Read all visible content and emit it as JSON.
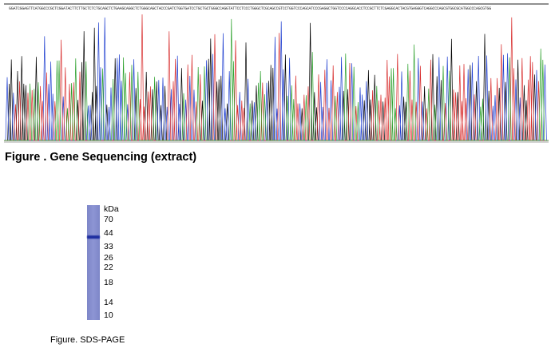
{
  "sequencing": {
    "sequence": "GGATCGGAGTTCATGGCCCGCTCGGATACTTCTTGCTCTCTGCAGCTCTGAAGCAGGCTCTGGGCAGCTACCCGATCTGGTGATCCTGCTGCTGGGCCAGGTATTCCTCCCTGGGCTCGCAGCCGTCCTGGTCCCAGCATCCCGAGGCTGGTCCCCAGGCACCTCCGCTTCTCGAGGCACTACGTGAGGGTCAGGCCCAGCGTGGCGCATGGCCCAGCGTGG",
    "caption": "Figure . Gene Sequencing (extract)",
    "trace_colors": [
      "#000000",
      "#1f3fd0",
      "#d82c2c",
      "#2ca12c"
    ]
  },
  "gel": {
    "unit_label": "kDa",
    "markers": [
      "70",
      "44",
      "33",
      "26",
      "22",
      "18",
      "14",
      "10"
    ],
    "caption": "Figure. SDS-PAGE",
    "band_at_kda": 40
  }
}
